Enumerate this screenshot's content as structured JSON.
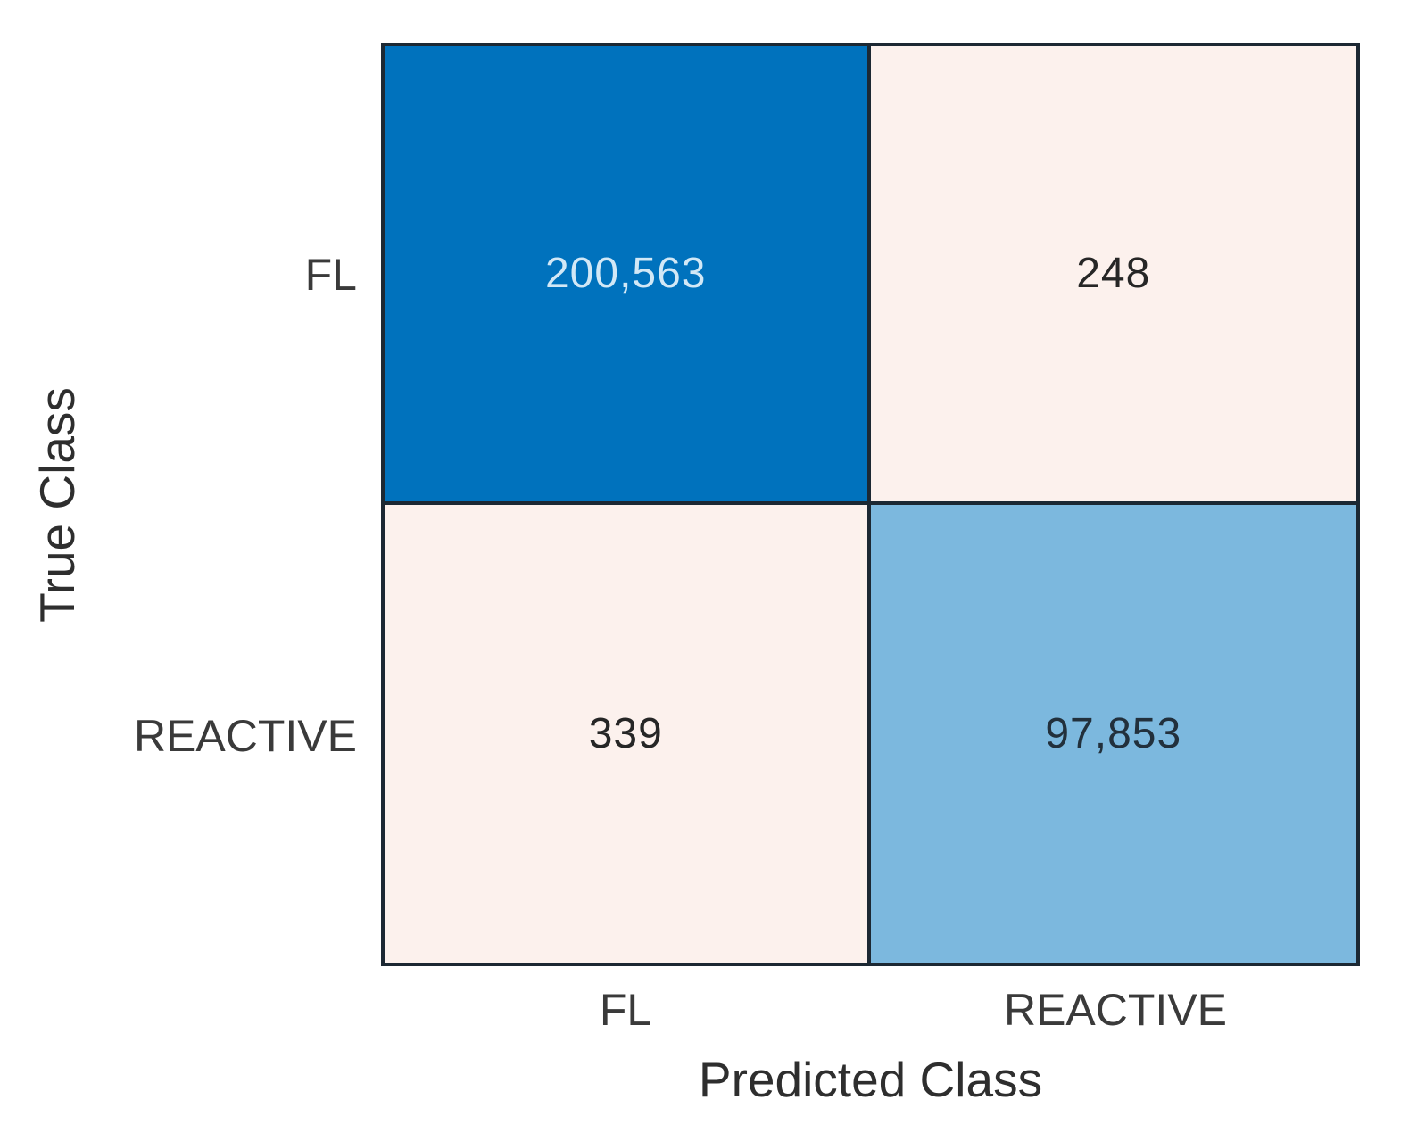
{
  "chart_data": {
    "type": "heatmap",
    "subtype": "confusion-matrix",
    "title": "",
    "xlabel": "Predicted Class",
    "ylabel": "True Class",
    "x_categories": [
      "FL",
      "REACTIVE"
    ],
    "y_categories": [
      "FL",
      "REACTIVE"
    ],
    "values": [
      [
        200563,
        248
      ],
      [
        339,
        97853
      ]
    ],
    "display_values": [
      [
        "200,563",
        "248"
      ],
      [
        "339",
        "97,853"
      ]
    ],
    "cell_colors": [
      [
        "#0072bd",
        "#fcf1ed"
      ],
      [
        "#fcf1ed",
        "#7cb8de"
      ]
    ],
    "value_text_colors": [
      [
        "#d2e8f6",
        "#262626"
      ],
      [
        "#262626",
        "#22303c"
      ]
    ],
    "grid_line_color": "#1c2833",
    "legend": "none",
    "layout": {
      "grid": "2x2",
      "colorbar": false
    }
  }
}
